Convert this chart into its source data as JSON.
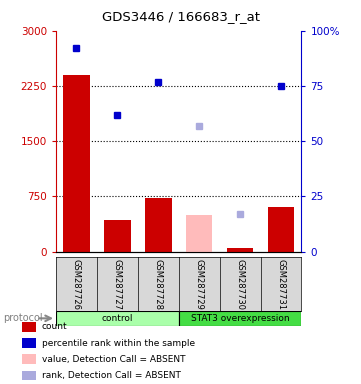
{
  "title": "GDS3446 / 166683_r_at",
  "samples": [
    "GSM287726",
    "GSM287727",
    "GSM287728",
    "GSM287729",
    "GSM287730",
    "GSM287731"
  ],
  "bar_values": [
    2400,
    430,
    730,
    0,
    50,
    610
  ],
  "bar_colors": [
    "#cc0000",
    "#cc0000",
    "#cc0000",
    null,
    "#cc0000",
    "#cc0000"
  ],
  "absent_bar_values": [
    0,
    0,
    0,
    490,
    0,
    0
  ],
  "absent_bar_color": "#ffbbbb",
  "percentile_values": [
    92,
    62,
    77,
    null,
    null,
    75
  ],
  "percentile_absent_values": [
    null,
    null,
    null,
    57,
    17,
    null
  ],
  "percentile_color": "#0000cc",
  "percentile_absent_color": "#aaaadd",
  "ylim_left": [
    0,
    3000
  ],
  "ylim_right": [
    0,
    100
  ],
  "yticks_left": [
    0,
    750,
    1500,
    2250,
    3000
  ],
  "yticks_right": [
    0,
    25,
    50,
    75,
    100
  ],
  "ytick_labels_left": [
    "0",
    "750",
    "1500",
    "2250",
    "3000"
  ],
  "ytick_labels_right": [
    "0",
    "25",
    "50",
    "75",
    "100%"
  ],
  "left_axis_color": "#cc0000",
  "right_axis_color": "#0000cc",
  "protocol_groups": [
    {
      "label": "control",
      "start": 0,
      "end": 3,
      "color": "#aaffaa"
    },
    {
      "label": "STAT3 overexpression",
      "start": 3,
      "end": 6,
      "color": "#44dd44"
    }
  ],
  "protocol_label": "protocol",
  "legend_items": [
    {
      "color": "#cc0000",
      "label": "count"
    },
    {
      "color": "#0000cc",
      "label": "percentile rank within the sample"
    },
    {
      "color": "#ffbbbb",
      "label": "value, Detection Call = ABSENT"
    },
    {
      "color": "#aaaadd",
      "label": "rank, Detection Call = ABSENT"
    }
  ],
  "bar_width": 0.65,
  "background_color": "#ffffff"
}
